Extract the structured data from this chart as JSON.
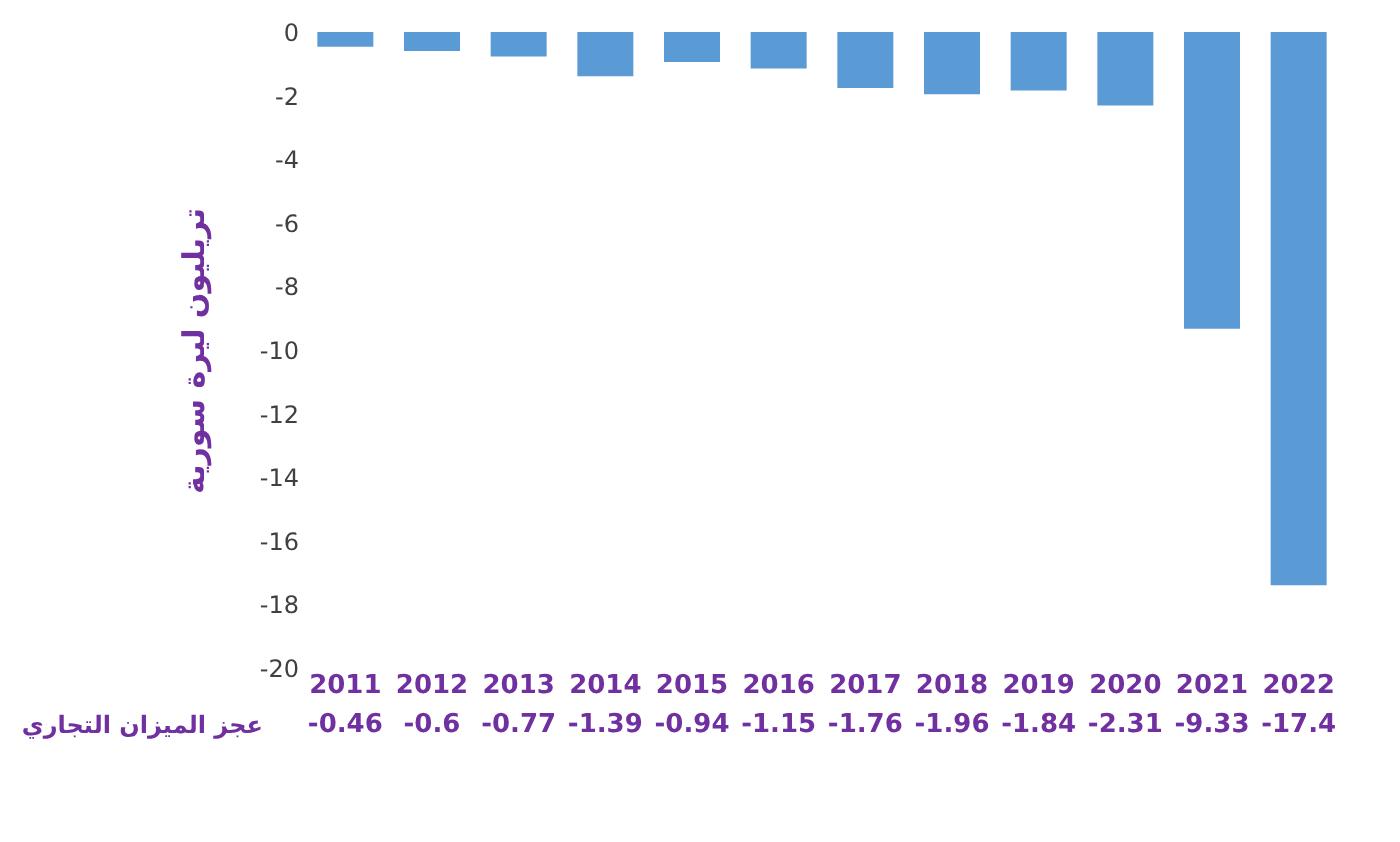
{
  "chart_data": {
    "type": "bar",
    "ylabel": "تريليون ليرة سورية",
    "categories": [
      "2011",
      "2012",
      "2013",
      "2014",
      "2015",
      "2016",
      "2017",
      "2018",
      "2019",
      "2020",
      "2021",
      "2022"
    ],
    "series": [
      {
        "name": "عجز الميزان التجاري",
        "color": "#5b9bd5",
        "values": [
          -0.46,
          -0.6,
          -0.77,
          -1.39,
          -0.94,
          -1.15,
          -1.76,
          -1.96,
          -1.84,
          -2.31,
          -9.33,
          -17.4
        ]
      }
    ],
    "ylim": [
      -20,
      0
    ],
    "yticks": [
      -20,
      -18,
      -16,
      -14,
      -12,
      -10,
      -8,
      -6,
      -4,
      -2,
      0
    ],
    "grid": false,
    "legend": false,
    "data_labels": true
  }
}
